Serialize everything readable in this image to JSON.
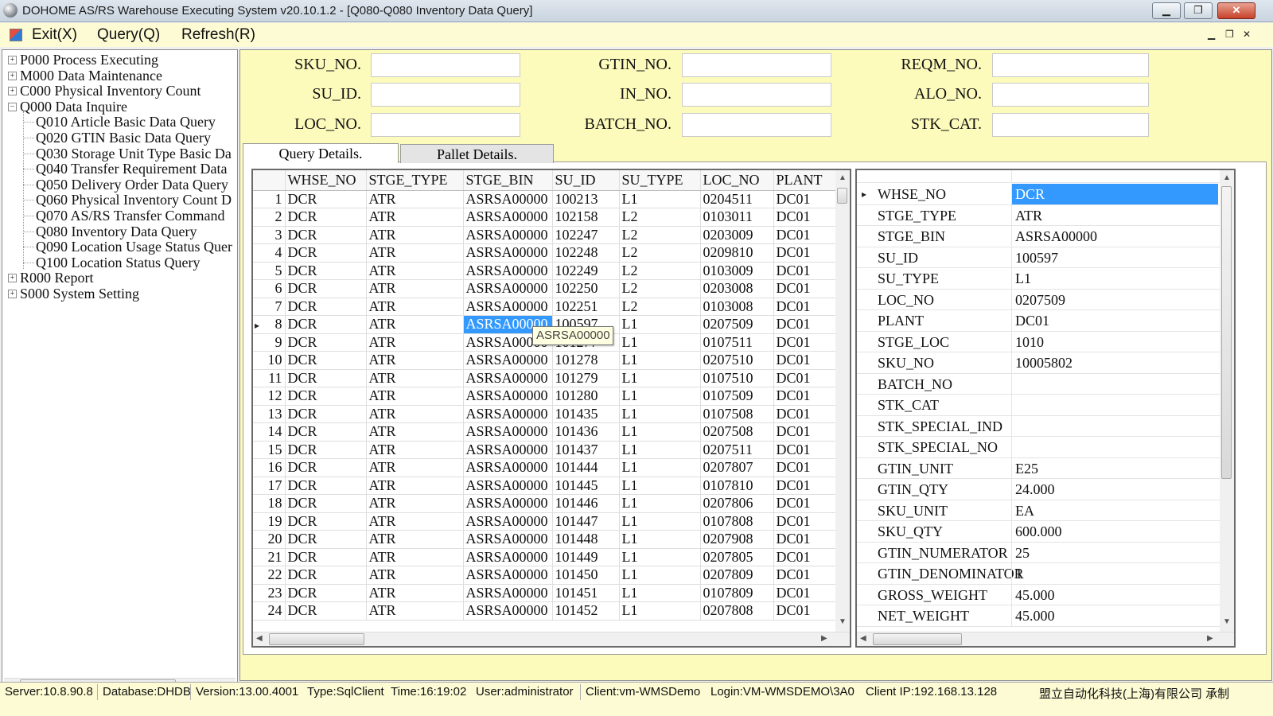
{
  "window": {
    "title": "DOHOME AS/RS Warehouse Executing System v20.10.1.2 - [Q080-Q080 Inventory Data Query]"
  },
  "menu": {
    "exit": "Exit(X)",
    "query": "Query(Q)",
    "refresh": "Refresh(R)"
  },
  "tree": {
    "nodes": [
      {
        "label": "P000 Process Executing",
        "expander": "+"
      },
      {
        "label": "M000 Data Maintenance",
        "expander": "+"
      },
      {
        "label": "C000 Physical Inventory Count",
        "expander": "+"
      },
      {
        "label": "Q000 Data Inquire",
        "expander": "−"
      },
      {
        "label": "Q010 Article Basic Data Query"
      },
      {
        "label": "Q020 GTIN Basic Data Query"
      },
      {
        "label": "Q030 Storage Unit Type Basic Da"
      },
      {
        "label": "Q040 Transfer Requirement Data"
      },
      {
        "label": "Q050 Delivery Order Data Query"
      },
      {
        "label": "Q060 Physical Inventory Count D"
      },
      {
        "label": "Q070 AS/RS Transfer Command"
      },
      {
        "label": "Q080 Inventory Data Query"
      },
      {
        "label": "Q090 Location Usage Status Quer"
      },
      {
        "label": "Q100 Location Status Query"
      },
      {
        "label": "R000 Report",
        "expander": "+"
      },
      {
        "label": "S000 System Setting",
        "expander": "+"
      }
    ]
  },
  "filters": {
    "sku_no": {
      "label": "SKU_NO.",
      "value": ""
    },
    "su_id": {
      "label": "SU_ID.",
      "value": ""
    },
    "loc_no": {
      "label": "LOC_NO.",
      "value": ""
    },
    "gtin_no": {
      "label": "GTIN_NO.",
      "value": ""
    },
    "in_no": {
      "label": "IN_NO.",
      "value": ""
    },
    "batch_no": {
      "label": "BATCH_NO.",
      "value": ""
    },
    "reqm_no": {
      "label": "REQM_NO.",
      "value": ""
    },
    "alo_no": {
      "label": "ALO_NO.",
      "value": ""
    },
    "stk_cat": {
      "label": "STK_CAT.",
      "value": ""
    }
  },
  "tabs": {
    "query_details": "Query Details.",
    "pallet_details": "Pallet Details."
  },
  "grid": {
    "columns": [
      "WHSE_NO",
      "STGE_TYPE",
      "STGE_BIN",
      "SU_ID",
      "SU_TYPE",
      "LOC_NO",
      "PLANT"
    ],
    "current_row_marker": "▸",
    "rows": [
      [
        "1",
        "DCR",
        "ATR",
        "ASRSA00000",
        "100213",
        "L1",
        "0204511",
        "DC01"
      ],
      [
        "2",
        "DCR",
        "ATR",
        "ASRSA00000",
        "102158",
        "L2",
        "0103011",
        "DC01"
      ],
      [
        "3",
        "DCR",
        "ATR",
        "ASRSA00000",
        "102247",
        "L2",
        "0203009",
        "DC01"
      ],
      [
        "4",
        "DCR",
        "ATR",
        "ASRSA00000",
        "102248",
        "L2",
        "0209810",
        "DC01"
      ],
      [
        "5",
        "DCR",
        "ATR",
        "ASRSA00000",
        "102249",
        "L2",
        "0103009",
        "DC01"
      ],
      [
        "6",
        "DCR",
        "ATR",
        "ASRSA00000",
        "102250",
        "L2",
        "0203008",
        "DC01"
      ],
      [
        "7",
        "DCR",
        "ATR",
        "ASRSA00000",
        "102251",
        "L2",
        "0103008",
        "DC01"
      ],
      [
        "8",
        "DCR",
        "ATR",
        "ASRSA00000",
        "100597",
        "L1",
        "0207509",
        "DC01"
      ],
      [
        "9",
        "DCR",
        "ATR",
        "ASRSA00000",
        "101277",
        "L1",
        "0107511",
        "DC01"
      ],
      [
        "10",
        "DCR",
        "ATR",
        "ASRSA00000",
        "101278",
        "L1",
        "0207510",
        "DC01"
      ],
      [
        "11",
        "DCR",
        "ATR",
        "ASRSA00000",
        "101279",
        "L1",
        "0107510",
        "DC01"
      ],
      [
        "12",
        "DCR",
        "ATR",
        "ASRSA00000",
        "101280",
        "L1",
        "0107509",
        "DC01"
      ],
      [
        "13",
        "DCR",
        "ATR",
        "ASRSA00000",
        "101435",
        "L1",
        "0107508",
        "DC01"
      ],
      [
        "14",
        "DCR",
        "ATR",
        "ASRSA00000",
        "101436",
        "L1",
        "0207508",
        "DC01"
      ],
      [
        "15",
        "DCR",
        "ATR",
        "ASRSA00000",
        "101437",
        "L1",
        "0207511",
        "DC01"
      ],
      [
        "16",
        "DCR",
        "ATR",
        "ASRSA00000",
        "101444",
        "L1",
        "0207807",
        "DC01"
      ],
      [
        "17",
        "DCR",
        "ATR",
        "ASRSA00000",
        "101445",
        "L1",
        "0107810",
        "DC01"
      ],
      [
        "18",
        "DCR",
        "ATR",
        "ASRSA00000",
        "101446",
        "L1",
        "0207806",
        "DC01"
      ],
      [
        "19",
        "DCR",
        "ATR",
        "ASRSA00000",
        "101447",
        "L1",
        "0107808",
        "DC01"
      ],
      [
        "20",
        "DCR",
        "ATR",
        "ASRSA00000",
        "101448",
        "L1",
        "0207908",
        "DC01"
      ],
      [
        "21",
        "DCR",
        "ATR",
        "ASRSA00000",
        "101449",
        "L1",
        "0207805",
        "DC01"
      ],
      [
        "22",
        "DCR",
        "ATR",
        "ASRSA00000",
        "101450",
        "L1",
        "0207809",
        "DC01"
      ],
      [
        "23",
        "DCR",
        "ATR",
        "ASRSA00000",
        "101451",
        "L1",
        "0107809",
        "DC01"
      ],
      [
        "24",
        "DCR",
        "ATR",
        "ASRSA00000",
        "101452",
        "L1",
        "0207808",
        "DC01"
      ]
    ],
    "selected_row": 8,
    "selected_col": "STGE_BIN",
    "tooltip": "ASRSA00000"
  },
  "props": {
    "current_marker": "▸",
    "rows": [
      {
        "name": "WHSE_NO",
        "value": "DCR"
      },
      {
        "name": "STGE_TYPE",
        "value": "ATR"
      },
      {
        "name": "STGE_BIN",
        "value": "ASRSA00000"
      },
      {
        "name": "SU_ID",
        "value": "100597"
      },
      {
        "name": "SU_TYPE",
        "value": "L1"
      },
      {
        "name": "LOC_NO",
        "value": "0207509"
      },
      {
        "name": "PLANT",
        "value": "DC01"
      },
      {
        "name": "STGE_LOC",
        "value": "1010"
      },
      {
        "name": "SKU_NO",
        "value": "10005802"
      },
      {
        "name": "BATCH_NO",
        "value": ""
      },
      {
        "name": "STK_CAT",
        "value": ""
      },
      {
        "name": "STK_SPECIAL_IND",
        "value": ""
      },
      {
        "name": "STK_SPECIAL_NO",
        "value": ""
      },
      {
        "name": "GTIN_UNIT",
        "value": "E25"
      },
      {
        "name": "GTIN_QTY",
        "value": "24.000"
      },
      {
        "name": "SKU_UNIT",
        "value": "EA"
      },
      {
        "name": "SKU_QTY",
        "value": "600.000"
      },
      {
        "name": "GTIN_NUMERATOR",
        "value": "25"
      },
      {
        "name": "GTIN_DENOMINATOR",
        "value": "1"
      },
      {
        "name": "GROSS_WEIGHT",
        "value": "45.000"
      },
      {
        "name": "NET_WEIGHT",
        "value": "45.000"
      }
    ]
  },
  "status": {
    "server": "Server:10.8.90.8",
    "database": "Database:DHDB",
    "version": "Version:13.00.4001",
    "type": "Type:SqlClient",
    "time": "Time:16:19:02",
    "user": "User:administrator",
    "client": "Client:vm-WMSDemo",
    "login": "Login:VM-WMSDEMO\\3A0",
    "client_ip": "Client IP:192.168.13.128",
    "vendor": "盟立自动化科技(上海)有限公司 承制"
  },
  "colors": {
    "panel_bg": "#fdfbbb",
    "menubar_bg": "#fdfbd3",
    "selection": "#3399ff"
  }
}
